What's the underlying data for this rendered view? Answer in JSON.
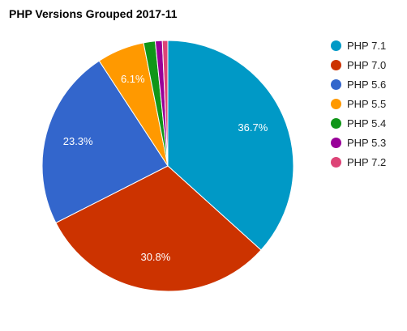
{
  "chart_data": {
    "type": "pie",
    "title": "PHP Versions Grouped 2017-11",
    "legend_position": "right",
    "slices": [
      {
        "label": "PHP 7.1",
        "value": 36.7,
        "color": "#0099c6",
        "display": "36.7%"
      },
      {
        "label": "PHP 7.0",
        "value": 30.8,
        "color": "#cc3300",
        "display": "30.8%"
      },
      {
        "label": "PHP 5.6",
        "value": 23.3,
        "color": "#3366cc",
        "display": "23.3%"
      },
      {
        "label": "PHP 5.5",
        "value": 6.1,
        "color": "#ff9900",
        "display": "6.1%"
      },
      {
        "label": "PHP 5.4",
        "value": 1.5,
        "color": "#109618",
        "display": ""
      },
      {
        "label": "PHP 5.3",
        "value": 0.9,
        "color": "#990099",
        "display": ""
      },
      {
        "label": "PHP 7.2",
        "value": 0.7,
        "color": "#dd4477",
        "display": ""
      }
    ]
  }
}
